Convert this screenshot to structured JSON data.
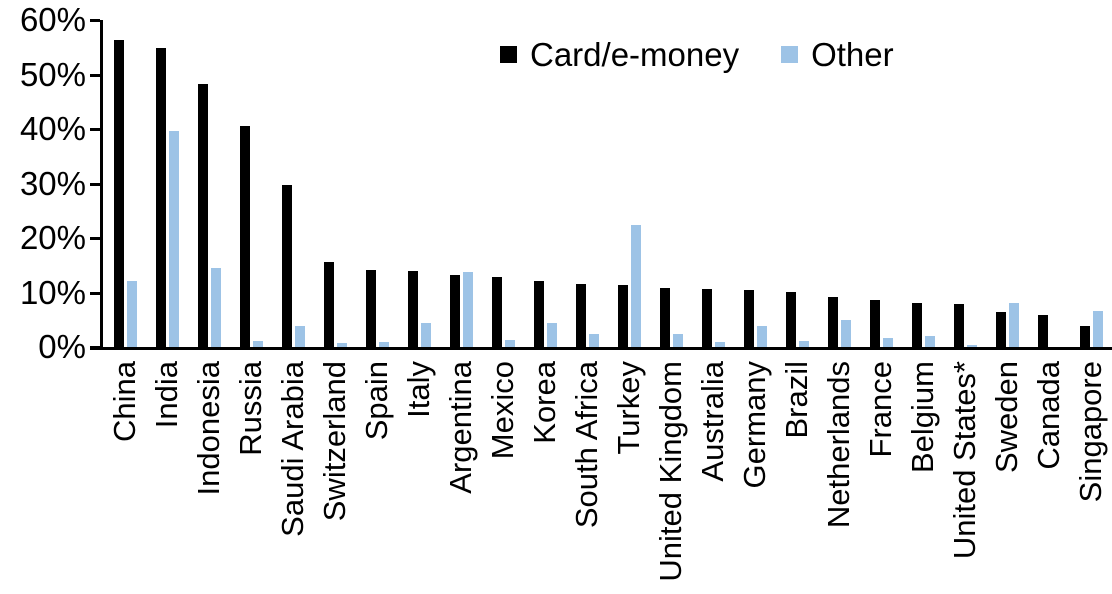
{
  "chart_data": {
    "type": "bar",
    "title": "",
    "xlabel": "",
    "ylabel": "",
    "ylim": [
      0,
      60
    ],
    "y_ticks": [
      0,
      10,
      20,
      30,
      40,
      50,
      60
    ],
    "y_tick_suffix": "%",
    "grid": false,
    "legend_position": "top-center",
    "categories": [
      "China",
      "India",
      "Indonesia",
      "Russia",
      "Saudi Arabia",
      "Switzerland",
      "Spain",
      "Italy",
      "Argentina",
      "Mexico",
      "Korea",
      "South Africa",
      "Turkey",
      "United Kingdom",
      "Australia",
      "Germany",
      "Brazil",
      "Netherlands",
      "France",
      "Belgium",
      "United States*",
      "Sweden",
      "Canada",
      "Singapore"
    ],
    "series": [
      {
        "name": "Card/e-money",
        "color": "#000000",
        "values": [
          56.3,
          54.9,
          48.2,
          40.6,
          29.8,
          15.6,
          14.1,
          14.0,
          13.3,
          12.9,
          12.1,
          11.5,
          11.4,
          10.9,
          10.6,
          10.5,
          10.0,
          9.1,
          8.6,
          8.1,
          7.8,
          6.4,
          5.8,
          3.8
        ]
      },
      {
        "name": "Other",
        "color": "#9DC3E6",
        "values": [
          12.2,
          39.6,
          14.5,
          1.1,
          3.8,
          0.8,
          1.0,
          4.4,
          13.8,
          1.2,
          4.4,
          2.3,
          22.4,
          2.3,
          1.0,
          3.9,
          1.1,
          4.9,
          1.6,
          2.1,
          0.3,
          8.0,
          0.0,
          6.6
        ]
      }
    ]
  }
}
